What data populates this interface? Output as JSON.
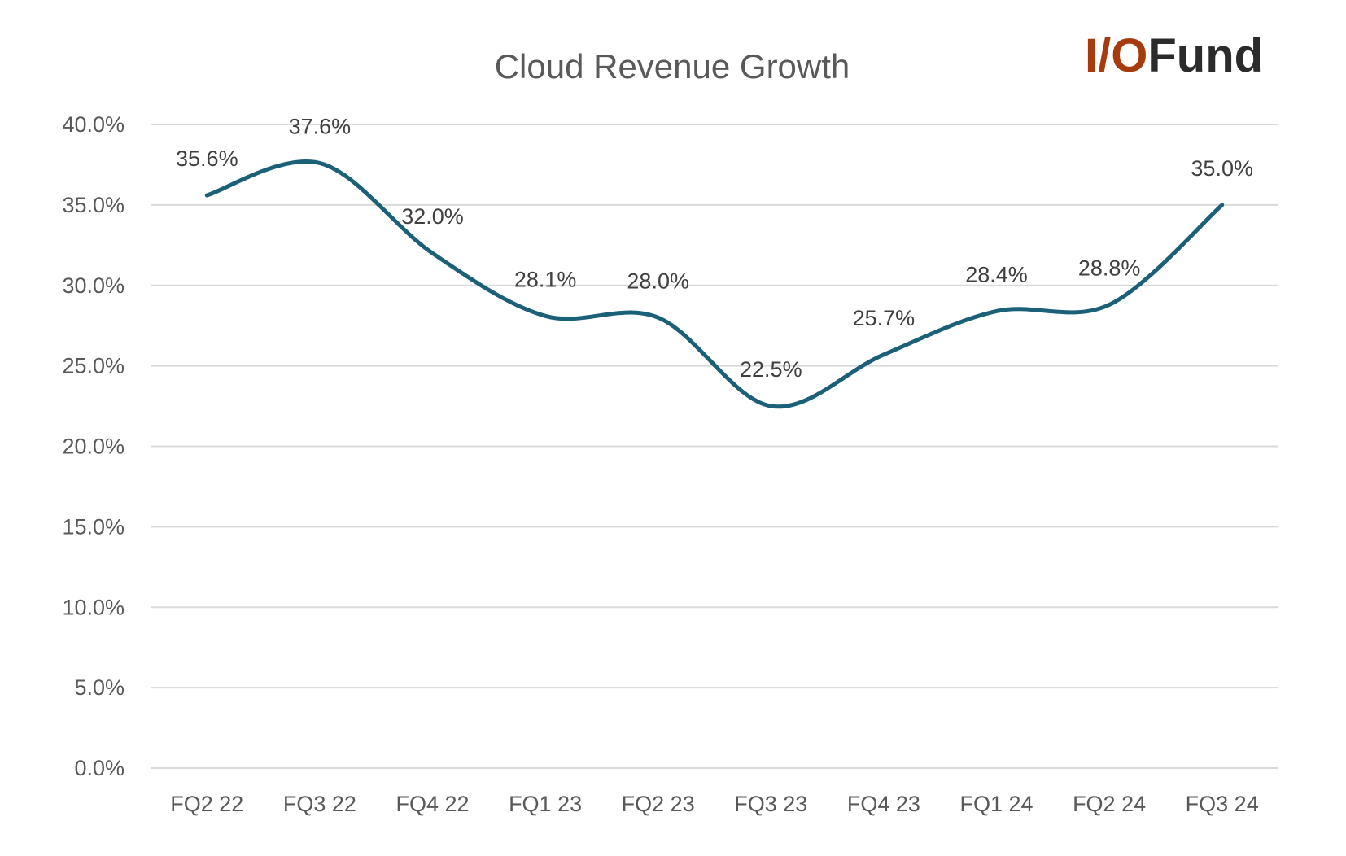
{
  "logo": {
    "text_accent": "I/O",
    "text_main": "Fund",
    "accent_color": "#a63c0e",
    "main_color": "#2b2b2b"
  },
  "chart_data": {
    "type": "line",
    "title": "Cloud Revenue Growth",
    "categories": [
      "FQ2 22",
      "FQ3 22",
      "FQ4 22",
      "FQ1 23",
      "FQ2 23",
      "FQ3 23",
      "FQ4 23",
      "FQ1 24",
      "FQ2 24",
      "FQ3 24"
    ],
    "values": [
      35.6,
      37.6,
      32.0,
      28.1,
      28.0,
      22.5,
      25.7,
      28.4,
      28.8,
      35.0
    ],
    "data_labels": [
      "35.6%",
      "37.6%",
      "32.0%",
      "28.1%",
      "28.0%",
      "22.5%",
      "25.7%",
      "28.4%",
      "28.8%",
      "35.0%"
    ],
    "y_ticks": [
      "0.0%",
      "5.0%",
      "10.0%",
      "15.0%",
      "20.0%",
      "25.0%",
      "30.0%",
      "35.0%",
      "40.0%"
    ],
    "ylim": [
      0,
      40
    ],
    "smooth": true,
    "grid": true,
    "line_color": "#1b6079",
    "xlabel": "",
    "ylabel": ""
  }
}
